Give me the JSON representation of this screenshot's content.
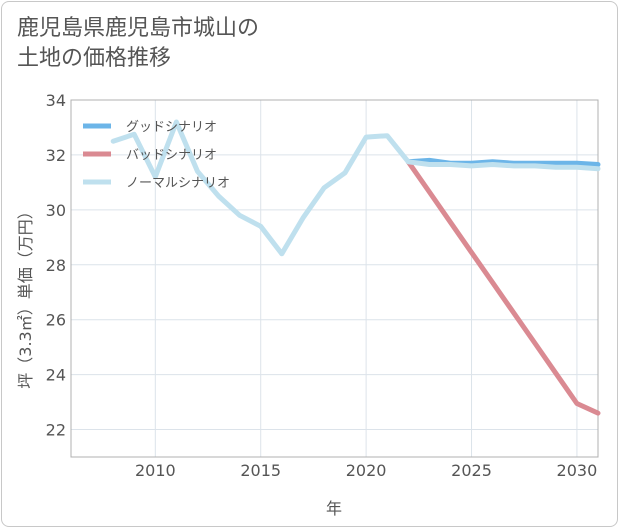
{
  "title": "鹿児島県鹿児島市城山の\n土地の価格推移",
  "chart_data": {
    "type": "line",
    "xlabel": "年",
    "ylabel": "坪（3.3㎡）単価（万円）",
    "xlim": [
      2006,
      2031
    ],
    "ylim": [
      21,
      34
    ],
    "x_ticks": [
      2010,
      2015,
      2020,
      2025,
      2030
    ],
    "y_ticks": [
      22,
      24,
      26,
      28,
      30,
      32,
      34
    ],
    "grid": true,
    "legend_position": "top-left",
    "series": [
      {
        "name": "グッドシナリオ",
        "color": "#6cb5e8",
        "x": [
          2022,
          2023,
          2024,
          2025,
          2026,
          2027,
          2028,
          2029,
          2030,
          2031
        ],
        "values": [
          31.75,
          31.8,
          31.7,
          31.7,
          31.75,
          31.7,
          31.7,
          31.7,
          31.7,
          31.65
        ]
      },
      {
        "name": "バッドシナリオ",
        "color": "#da8a92",
        "x": [
          2022,
          2023,
          2024,
          2025,
          2026,
          2027,
          2028,
          2029,
          2030,
          2031
        ],
        "values": [
          31.75,
          30.65,
          29.55,
          28.45,
          27.35,
          26.25,
          25.15,
          24.05,
          22.95,
          22.6
        ]
      },
      {
        "name": "ノーマルシナリオ",
        "color": "#bfe0ee",
        "x": [
          2008,
          2009,
          2010,
          2011,
          2012,
          2013,
          2014,
          2015,
          2016,
          2017,
          2018,
          2019,
          2020,
          2021,
          2022,
          2023,
          2024,
          2025,
          2026,
          2027,
          2028,
          2029,
          2030,
          2031
        ],
        "values": [
          32.5,
          32.75,
          31.2,
          33.2,
          31.4,
          30.5,
          29.8,
          29.4,
          28.4,
          29.7,
          30.8,
          31.35,
          32.65,
          32.7,
          31.75,
          31.65,
          31.65,
          31.6,
          31.65,
          31.6,
          31.6,
          31.55,
          31.55,
          31.5
        ]
      }
    ]
  }
}
